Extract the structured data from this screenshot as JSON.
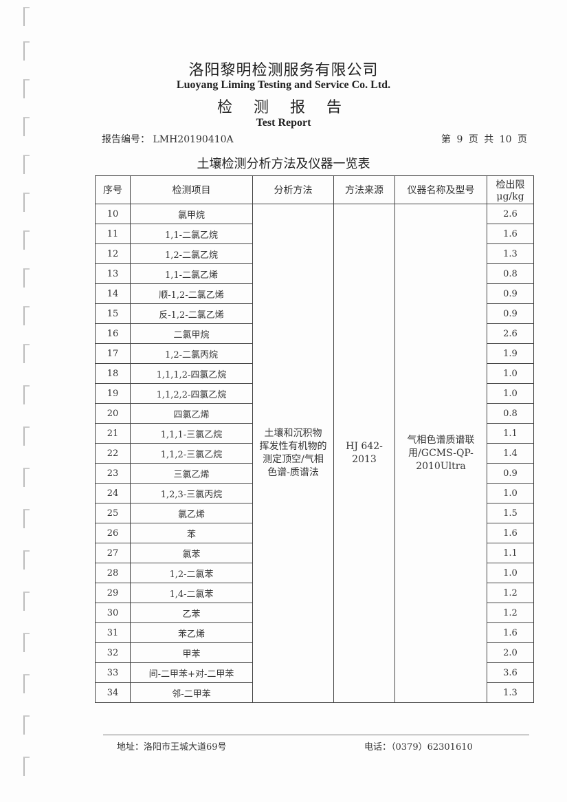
{
  "header": {
    "company_cn": "洛阳黎明检测服务有限公司",
    "company_en": "Luoyang Liming Testing and Service Co. Ltd.",
    "doc_cn": "检 测 报 告",
    "doc_en": "Test Report",
    "report_no": "报告编号： LMH20190410A",
    "page_info": "第 9 页 共 10 页"
  },
  "table_title": "土壤检测分析方法及仪器一览表",
  "columns": [
    "序号",
    "检测项目",
    "分析方法",
    "方法来源",
    "仪器名称及型号",
    "检出限 μg/kg"
  ],
  "method": "土壤和沉积物 挥发性有机物的测定顶空/气相色谱-质谱法",
  "source": "HJ 642-2013",
  "instrument": "气相色谱质谱联用/GCMS-QP-2010Ultra",
  "rows": [
    [
      "10",
      "氯甲烷",
      "2.6"
    ],
    [
      "11",
      "1,1-二氯乙烷",
      "1.6"
    ],
    [
      "12",
      "1,2-二氯乙烷",
      "1.3"
    ],
    [
      "13",
      "1,1-二氯乙烯",
      "0.8"
    ],
    [
      "14",
      "顺-1,2-二氯乙烯",
      "0.9"
    ],
    [
      "15",
      "反-1,2-二氯乙烯",
      "0.9"
    ],
    [
      "16",
      "二氯甲烷",
      "2.6"
    ],
    [
      "17",
      "1,2-二氯丙烷",
      "1.9"
    ],
    [
      "18",
      "1,1,1,2-四氯乙烷",
      "1.0"
    ],
    [
      "19",
      "1,1,2,2-四氯乙烷",
      "1.0"
    ],
    [
      "20",
      "四氯乙烯",
      "0.8"
    ],
    [
      "21",
      "1,1,1-三氯乙烷",
      "1.1"
    ],
    [
      "22",
      "1,1,2-三氯乙烷",
      "1.4"
    ],
    [
      "23",
      "三氯乙烯",
      "0.9"
    ],
    [
      "24",
      "1,2,3-三氯丙烷",
      "1.0"
    ],
    [
      "25",
      "氯乙烯",
      "1.5"
    ],
    [
      "26",
      "苯",
      "1.6"
    ],
    [
      "27",
      "氯苯",
      "1.1"
    ],
    [
      "28",
      "1,2-二氯苯",
      "1.0"
    ],
    [
      "29",
      "1,4-二氯苯",
      "1.2"
    ],
    [
      "30",
      "乙苯",
      "1.2"
    ],
    [
      "31",
      "苯乙烯",
      "1.6"
    ],
    [
      "32",
      "甲苯",
      "2.0"
    ],
    [
      "33",
      "间-二甲苯+对-二甲苯",
      "3.6"
    ],
    [
      "34",
      "邻-二甲苯",
      "1.3"
    ]
  ],
  "footer": {
    "address": "地址：洛阳市王城大道69号",
    "phone": "电话：（0379）62301610"
  }
}
